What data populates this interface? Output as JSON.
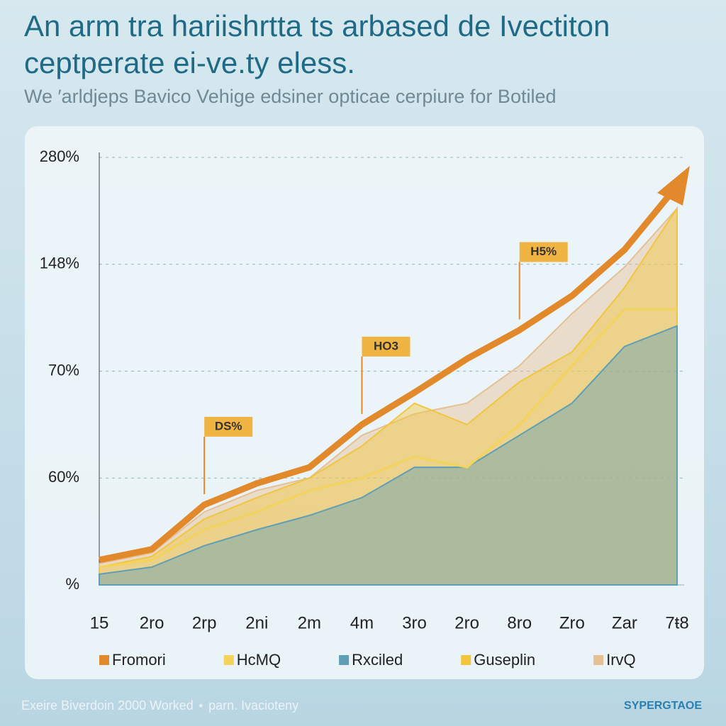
{
  "chart_data": {
    "type": "area",
    "title": "An arm tra hariishrtta ts arbased de Ivectiton ceptperate ei-ve.ty eless.",
    "subtitle": "We ′arldjeps Bavico Vehige edsiner opticae cerpiure for Botiled",
    "categories": [
      "15",
      "2ro",
      "2rp",
      "2ni",
      "2m",
      "4m",
      "3ro",
      "2ro",
      "8ro",
      "Zro",
      "Zar",
      "7ŧ8"
    ],
    "ylim": [
      0,
      280
    ],
    "yticks": [
      {
        "value": 0,
        "label": "%"
      },
      {
        "value": 60,
        "label": "60%"
      },
      {
        "value": 70,
        "label": "70%"
      },
      {
        "value": 148,
        "label": "148%"
      },
      {
        "value": 280,
        "label": "280%"
      }
    ],
    "grid": true,
    "series": [
      {
        "name": "IrvQ",
        "color": "#e6bf93",
        "style": "area",
        "values": [
          12,
          18,
          41,
          53,
          60,
          64,
          66,
          67,
          74,
          112,
          146,
          217
        ]
      },
      {
        "name": "Guseplin",
        "color": "#f2c53d",
        "style": "area",
        "values": [
          10,
          16,
          37,
          49,
          60,
          63,
          67,
          65,
          69,
          84,
          131,
          217
        ]
      },
      {
        "name": "Rxciled",
        "color": "#5f9fb5",
        "style": "area",
        "values": [
          6,
          10,
          22,
          31,
          39,
          49,
          61,
          61,
          64,
          67,
          88,
          103
        ]
      },
      {
        "name": "HcMQ",
        "color": "#f3d35a",
        "style": "line",
        "values": [
          10,
          14,
          31,
          41,
          53,
          60,
          62,
          61,
          65,
          74,
          115,
          115
        ]
      },
      {
        "name": "Fromori",
        "color": "#e2892b",
        "style": "line",
        "values": [
          14,
          20,
          45,
          57,
          61,
          65,
          68,
          79,
          100,
          125,
          166,
          245
        ]
      }
    ],
    "annotations": [
      "DS%",
      "HO3",
      "H5%"
    ]
  },
  "footer": {
    "note": "Exeire Biverdoin 2000 Worked ⋆ parn. Ivacioteny",
    "brand": "SYPERGTAOE"
  }
}
